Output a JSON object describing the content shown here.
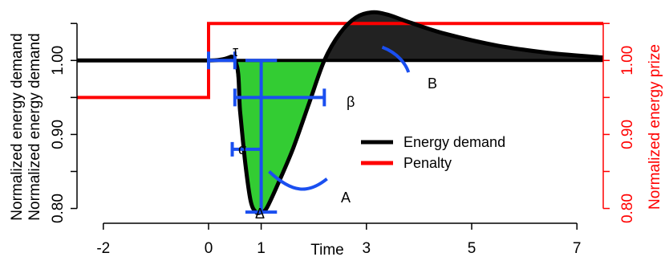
{
  "chart_data": {
    "type": "line",
    "xlabel": "Time",
    "ylabel_lines": [
      "Normalized energy demand",
      "Normalized energy demand"
    ],
    "ylabel_right": "Normalized energy prize",
    "xlim": [
      -2.5,
      7.5
    ],
    "ylim_left": [
      0.78,
      1.06
    ],
    "ylim_right": [
      0.78,
      1.06
    ],
    "x_ticks": [
      -2,
      0,
      1,
      3,
      5,
      7
    ],
    "x_tick_labels": [
      "-2",
      "0",
      "1",
      "3",
      "5",
      "7"
    ],
    "y_ticks_left": [
      0.8,
      0.85,
      0.9,
      0.95,
      1.0,
      1.05
    ],
    "y_tick_labels_left": [
      {
        "value": 0.8,
        "label": "0.80"
      },
      {
        "value": 0.9,
        "label": "0.90"
      },
      {
        "value": 1.0,
        "label": "1.00"
      }
    ],
    "y_ticks_right": [
      0.8,
      0.85,
      0.9,
      0.95,
      1.0,
      1.05
    ],
    "y_tick_labels_right": [
      {
        "value": 0.8,
        "label": "0.80"
      },
      {
        "value": 0.9,
        "label": "0.90"
      },
      {
        "value": 1.0,
        "label": "1.00"
      }
    ],
    "series": [
      {
        "name": "Energy demand",
        "color": "#000000",
        "baseline": 1.0,
        "points": [
          [
            -2.5,
            1.0
          ],
          [
            0.0,
            1.0
          ],
          [
            0.5,
            1.0
          ],
          [
            0.6,
            0.93
          ],
          [
            0.7,
            0.86
          ],
          [
            0.8,
            0.81
          ],
          [
            0.9,
            0.795
          ],
          [
            1.0,
            0.795
          ],
          [
            1.1,
            0.8
          ],
          [
            1.3,
            0.83
          ],
          [
            1.6,
            0.88
          ],
          [
            1.9,
            0.94
          ],
          [
            2.2,
            1.0
          ],
          [
            2.5,
            1.037
          ],
          [
            2.8,
            1.058
          ],
          [
            3.1,
            1.065
          ],
          [
            3.4,
            1.062
          ],
          [
            3.8,
            1.052
          ],
          [
            4.5,
            1.036
          ],
          [
            5.5,
            1.02
          ],
          [
            6.5,
            1.01
          ],
          [
            7.5,
            1.004
          ]
        ]
      },
      {
        "name": "Penalty",
        "color": "#ff0000",
        "points": [
          [
            -2.5,
            0.95
          ],
          [
            0.0,
            0.95
          ],
          [
            0.0,
            1.05
          ],
          [
            7.5,
            1.05
          ]
        ]
      }
    ],
    "fill_areas": [
      {
        "id": "A",
        "color": "#33cc33",
        "x_range": [
          0.5,
          2.2
        ],
        "description": "demand below baseline"
      },
      {
        "id": "B",
        "color": "#222222",
        "x_range": [
          2.2,
          7.5
        ],
        "description": "demand above baseline"
      }
    ],
    "annotations": [
      {
        "label": "τ",
        "type": "h-interval",
        "x_range": [
          0.0,
          0.5
        ],
        "y": 1.0
      },
      {
        "label": "β",
        "type": "h-interval",
        "x_range": [
          0.5,
          2.2
        ],
        "y": 0.95
      },
      {
        "label": "α",
        "type": "h-interval",
        "x_range": [
          0.9,
          1.0
        ],
        "y": 0.88
      },
      {
        "label": "Δ",
        "type": "v-interval",
        "x": 1.0,
        "y_range": [
          0.795,
          1.0
        ]
      },
      {
        "label": "A",
        "type": "pointer"
      },
      {
        "label": "B",
        "type": "pointer"
      }
    ],
    "legend": {
      "placement": "right-center",
      "entries": [
        {
          "label": "Energy demand",
          "color": "#000000"
        },
        {
          "label": "Penalty",
          "color": "#ff0000"
        }
      ]
    },
    "grid": false
  }
}
